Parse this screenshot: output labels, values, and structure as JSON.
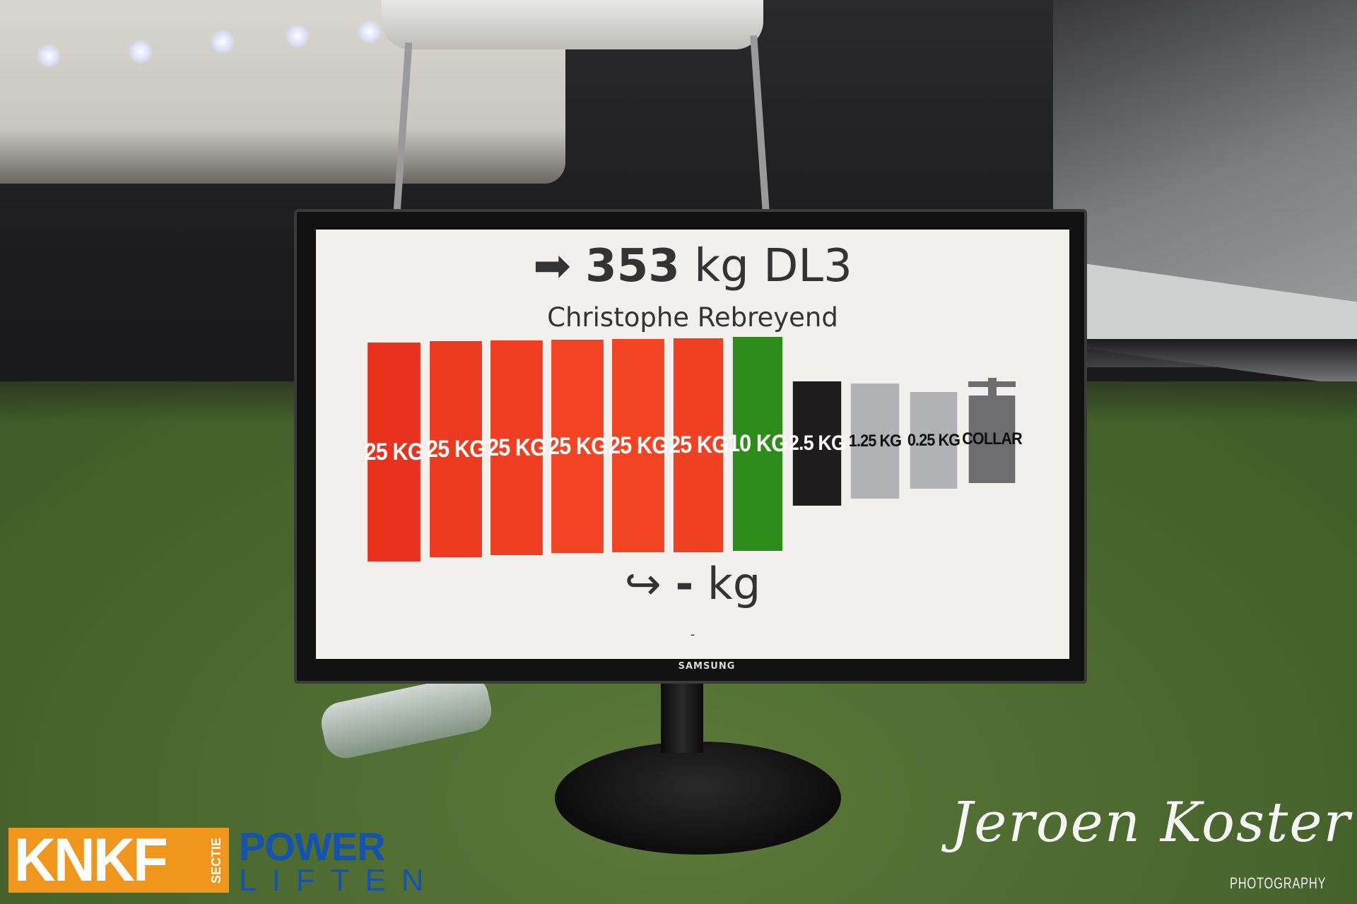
{
  "display": {
    "arrow_icon": "right-arrow",
    "weight": "353",
    "unit": "kg",
    "attempt": "DL3",
    "lifter": "Christophe Rebreyend",
    "next_icon": "hook-arrow",
    "next_weight": "-",
    "next_unit": "kg",
    "footer": "-",
    "brand": "SAMSUNG"
  },
  "plates": [
    {
      "label": "25 KG",
      "color": "#e8321e",
      "text_color": "#ffffff"
    },
    {
      "label": "25 KG",
      "color": "#ec3a20",
      "text_color": "#ffffff"
    },
    {
      "label": "25 KG",
      "color": "#f03e22",
      "text_color": "#ffffff"
    },
    {
      "label": "25 KG",
      "color": "#f24322",
      "text_color": "#ffffff"
    },
    {
      "label": "25 KG",
      "color": "#f24322",
      "text_color": "#ffffff"
    },
    {
      "label": "25 KG",
      "color": "#f04222",
      "text_color": "#ffffff"
    },
    {
      "label": "10 KG",
      "color": "#2e8c1a",
      "text_color": "#ffffff"
    },
    {
      "label": "2.5 KG",
      "color": "#1e1c1c",
      "text_color": "#ffffff"
    },
    {
      "label": "1.25 KG",
      "color": "#b0b2b6",
      "text_color": "#111111"
    },
    {
      "label": "0.25 KG",
      "color": "#b0b2b6",
      "text_color": "#111111"
    },
    {
      "label": "COLLAR",
      "color": "#6e6e70",
      "text_color": "#111111"
    }
  ],
  "watermark": {
    "logo_main": "KNKF",
    "logo_side": "SECTIE",
    "logo_power": "POWER",
    "logo_liften": "LIFTEN",
    "signature": "Jeroen Koster",
    "tagline": "PHOTOGRAPHY",
    "logo_color": "#f0961c",
    "logo_blue": "#1553b3"
  }
}
